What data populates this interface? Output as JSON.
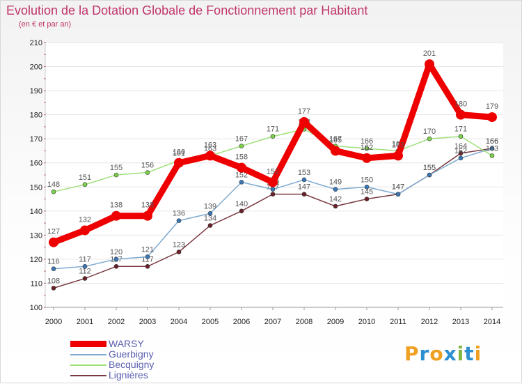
{
  "chart_data": {
    "type": "line",
    "title": "Evolution de la Dotation Globale de Fonctionnement par Habitant",
    "subtitle": "(en € et par an)",
    "categories": [
      "2000",
      "2001",
      "2002",
      "2003",
      "2004",
      "2005",
      "2006",
      "2007",
      "2008",
      "2009",
      "2010",
      "2011",
      "2012",
      "2013",
      "2014"
    ],
    "ylim": [
      100,
      210
    ],
    "yticks": [
      100,
      110,
      120,
      130,
      140,
      150,
      160,
      170,
      180,
      190,
      200,
      210
    ],
    "grid": "horizontal",
    "legend_position": "bottom-left",
    "series": [
      {
        "name": "WARSY",
        "color": "#ee0000",
        "point_color": "#ee0000",
        "values": [
          127,
          132,
          138,
          138,
          160,
          163,
          158,
          152,
          177,
          165,
          162,
          163,
          201,
          180,
          179
        ]
      },
      {
        "name": "Guerbigny",
        "color": "#7eaad0",
        "point_color": "#3b78b8",
        "values": [
          116,
          117,
          120,
          121,
          136,
          139,
          152,
          149,
          153,
          149,
          150,
          147,
          155,
          162,
          166
        ]
      },
      {
        "name": "Becquigny",
        "color": "#9ee07a",
        "point_color": "#7bd14a",
        "values": [
          148,
          151,
          155,
          156,
          161,
          163,
          167,
          171,
          174,
          167,
          166,
          165,
          170,
          171,
          163
        ]
      },
      {
        "name": "Lignières",
        "color": "#7a3a40",
        "point_color": "#6a2028",
        "values": [
          108,
          112,
          117,
          117,
          123,
          134,
          140,
          147,
          147,
          142,
          145,
          147,
          155,
          164,
          166
        ]
      }
    ]
  },
  "brand": {
    "letters": [
      "P",
      "r",
      "o",
      "x",
      "i",
      "t",
      "i"
    ],
    "colors": [
      "#f0a020",
      "#2c8fd0",
      "#f0a020",
      "#2c8fd0",
      "#7fb840",
      "#2c8fd0",
      "#f0a020"
    ]
  }
}
